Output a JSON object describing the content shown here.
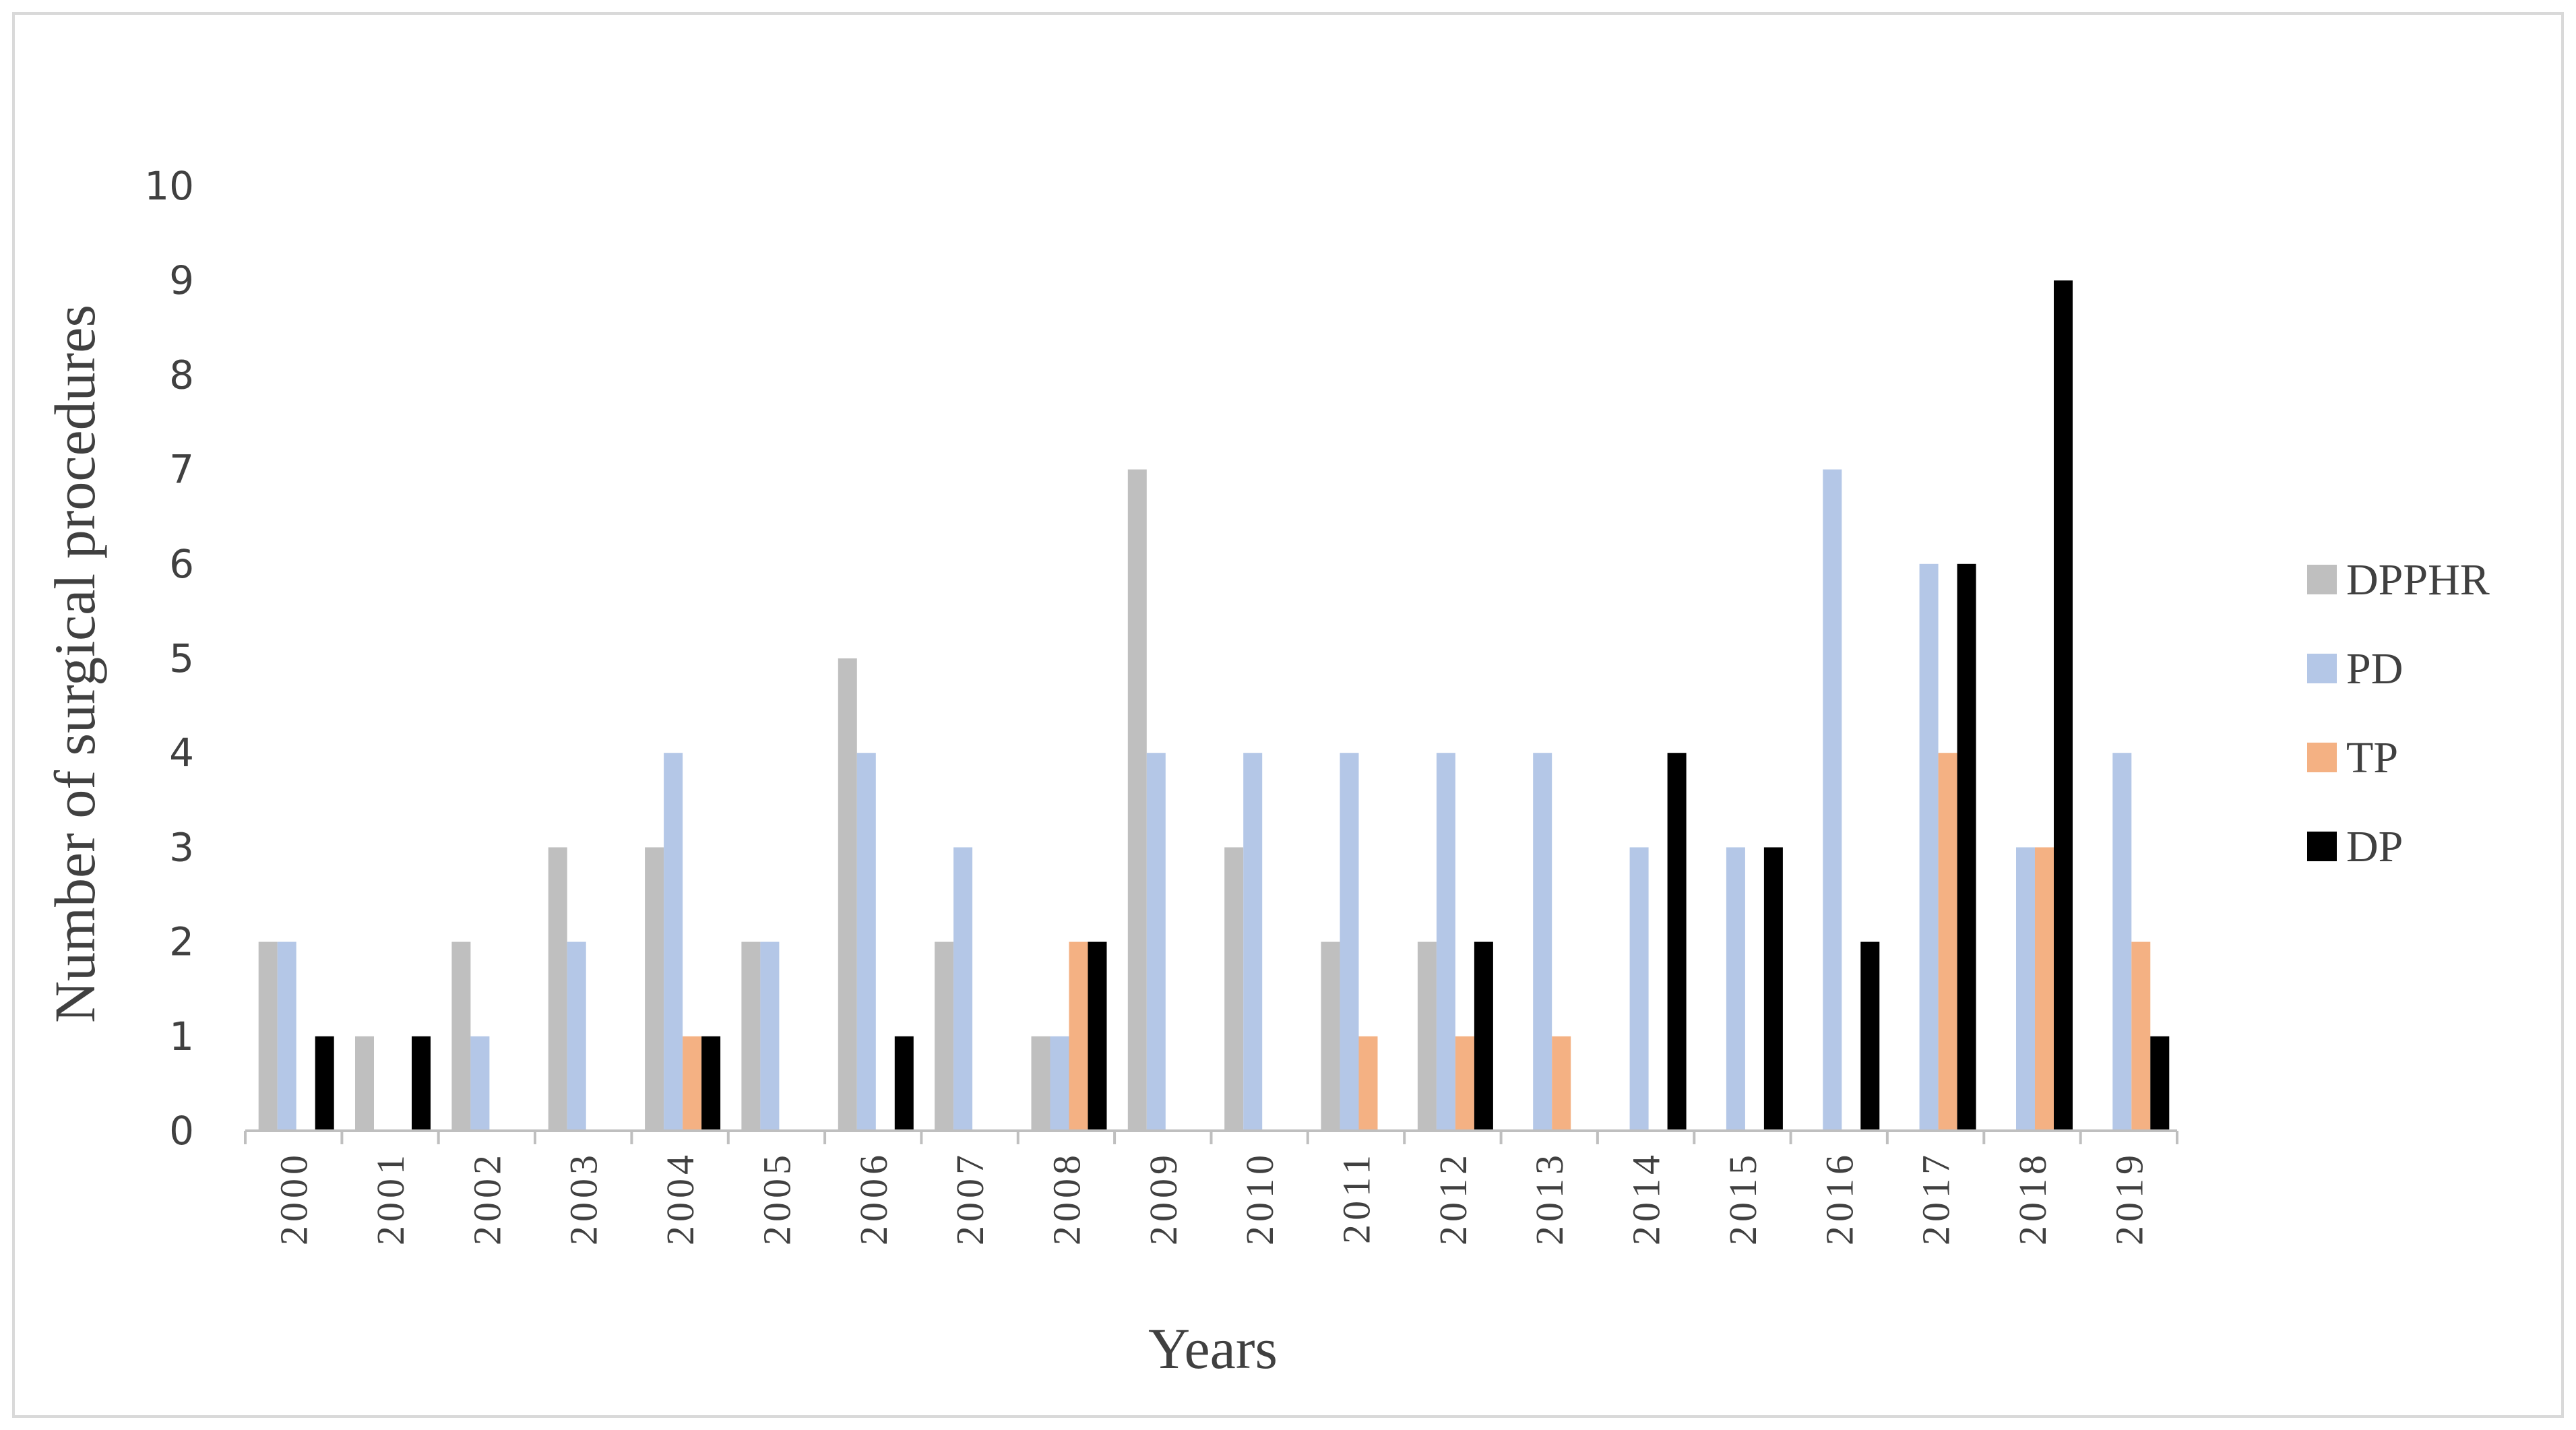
{
  "chart_data": {
    "type": "bar",
    "title": "",
    "xlabel": "Years",
    "ylabel": "Number of surgical procedures",
    "ylim": [
      0,
      10
    ],
    "yticks": [
      "0",
      "1",
      "2",
      "3",
      "4",
      "5",
      "6",
      "7",
      "8",
      "9",
      "10"
    ],
    "grid": false,
    "legend_position": "right",
    "categories": [
      "2000",
      "2001",
      "2002",
      "2003",
      "2004",
      "2005",
      "2006",
      "2007",
      "2008",
      "2009",
      "2010",
      "2011",
      "2012",
      "2013",
      "2014",
      "2015",
      "2016",
      "2017",
      "2018",
      "2019"
    ],
    "series": [
      {
        "name": "DPPHR",
        "color": "#bfbfbf",
        "values": [
          2,
          1,
          2,
          3,
          3,
          2,
          5,
          2,
          1,
          7,
          3,
          2,
          2,
          0,
          0,
          0,
          0,
          0,
          0,
          0
        ]
      },
      {
        "name": "PD",
        "color": "#b4c7e7",
        "values": [
          2,
          0,
          1,
          2,
          4,
          2,
          4,
          3,
          1,
          4,
          4,
          4,
          4,
          4,
          3,
          3,
          7,
          6,
          3,
          4
        ]
      },
      {
        "name": "TP",
        "color": "#f4b183",
        "values": [
          0,
          0,
          0,
          0,
          1,
          0,
          0,
          0,
          2,
          0,
          0,
          1,
          1,
          1,
          0,
          0,
          0,
          4,
          3,
          2
        ]
      },
      {
        "name": "DP",
        "color": "#000000",
        "values": [
          1,
          1,
          0,
          0,
          1,
          0,
          1,
          0,
          2,
          0,
          0,
          0,
          2,
          0,
          4,
          3,
          2,
          6,
          9,
          1
        ]
      }
    ]
  }
}
